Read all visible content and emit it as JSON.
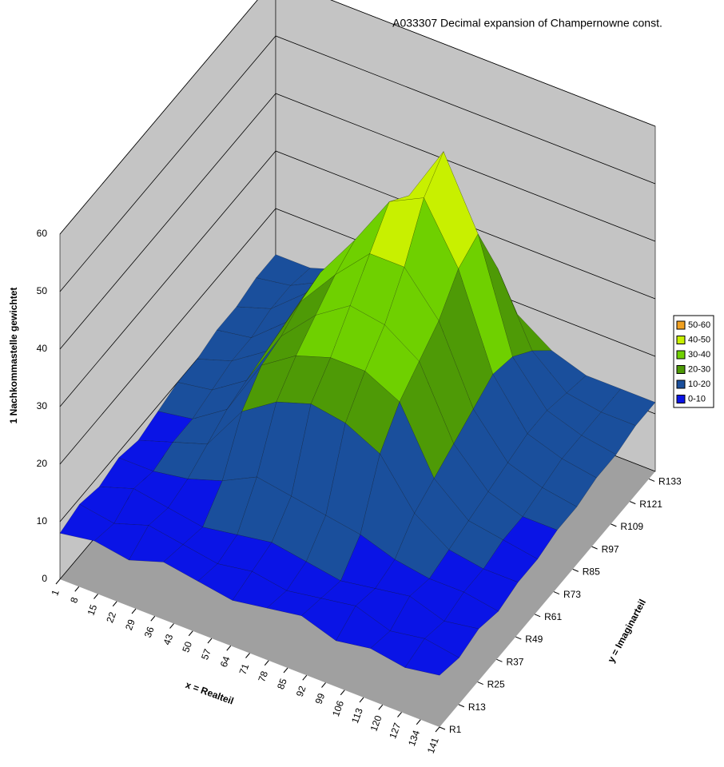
{
  "chart_data": {
    "type": "surface",
    "title": "A033307  Decimal expansion of Champernowne const.",
    "xlabel": "x = Realteil",
    "ylabel": "y = Imaginarteil",
    "zlabel": "1 Nachkommastelle gewichtet",
    "xlim": [
      1,
      141
    ],
    "xticks": [
      1,
      8,
      15,
      22,
      29,
      36,
      43,
      50,
      57,
      64,
      71,
      78,
      85,
      92,
      99,
      106,
      113,
      120,
      127,
      134,
      141
    ],
    "ylim": [
      1,
      137
    ],
    "yticks": [
      {
        "value": 1,
        "label": "R1"
      },
      {
        "value": 13,
        "label": "R13"
      },
      {
        "value": 25,
        "label": "R25"
      },
      {
        "value": 37,
        "label": "R37"
      },
      {
        "value": 49,
        "label": "R49"
      },
      {
        "value": 61,
        "label": "R61"
      },
      {
        "value": 73,
        "label": "R73"
      },
      {
        "value": 85,
        "label": "R85"
      },
      {
        "value": 97,
        "label": "R97"
      },
      {
        "value": 109,
        "label": "R109"
      },
      {
        "value": 121,
        "label": "R121"
      },
      {
        "value": 133,
        "label": "R133"
      }
    ],
    "zlim": [
      0,
      60
    ],
    "zticks": [
      0,
      10,
      20,
      30,
      40,
      50,
      60
    ],
    "legend": [
      {
        "name": "0-10",
        "color": "#0a14e6"
      },
      {
        "name": "10-20",
        "color": "#1a4f9c"
      },
      {
        "name": "20-30",
        "color": "#4e9a06"
      },
      {
        "name": "30-40",
        "color": "#6fd000"
      },
      {
        "name": "40-50",
        "color": "#c8f000"
      },
      {
        "name": "50-60",
        "color": "#f0a020"
      }
    ],
    "z": [
      [
        8,
        9,
        8,
        10,
        9,
        8,
        9,
        10,
        8,
        9,
        8,
        9
      ],
      [
        9,
        8,
        10,
        9,
        8,
        9,
        8,
        9,
        10,
        8,
        9,
        8
      ],
      [
        8,
        10,
        9,
        8,
        9,
        10,
        9,
        8,
        9,
        10,
        8,
        9
      ],
      [
        9,
        9,
        10,
        12,
        15,
        14,
        13,
        12,
        10,
        9,
        9,
        8
      ],
      [
        8,
        10,
        12,
        20,
        24,
        26,
        25,
        22,
        14,
        10,
        9,
        9
      ],
      [
        9,
        10,
        14,
        24,
        28,
        30,
        30,
        27,
        16,
        11,
        10,
        9
      ],
      [
        10,
        11,
        15,
        25,
        31,
        35,
        34,
        30,
        18,
        12,
        10,
        10
      ],
      [
        10,
        12,
        16,
        27,
        34,
        40,
        40,
        33,
        20,
        13,
        11,
        10
      ],
      [
        11,
        12,
        17,
        28,
        36,
        45,
        48,
        38,
        22,
        14,
        12,
        11
      ],
      [
        11,
        13,
        18,
        27,
        35,
        42,
        52,
        40,
        21,
        14,
        12,
        11
      ],
      [
        12,
        13,
        16,
        22,
        30,
        34,
        36,
        30,
        18,
        13,
        12,
        12
      ],
      [
        12,
        12,
        14,
        16,
        20,
        22,
        22,
        18,
        14,
        12,
        12,
        12
      ]
    ]
  }
}
